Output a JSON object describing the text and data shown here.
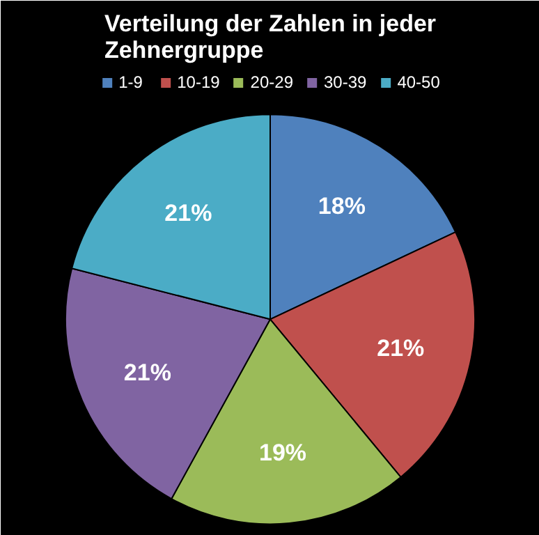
{
  "chart_data": {
    "type": "pie",
    "title": "Verteilung der Zahlen in jeder Zehnergruppe",
    "categories": [
      "1-9",
      "10-19",
      "20-29",
      "30-39",
      "40-50"
    ],
    "values": [
      18,
      21,
      19,
      21,
      21
    ],
    "colors": [
      "#4f81bd",
      "#c0504d",
      "#9bbb59",
      "#8064a2",
      "#4bacc6"
    ],
    "value_labels": [
      "18%",
      "21%",
      "19%",
      "21%",
      "21%"
    ],
    "legend": "top"
  }
}
